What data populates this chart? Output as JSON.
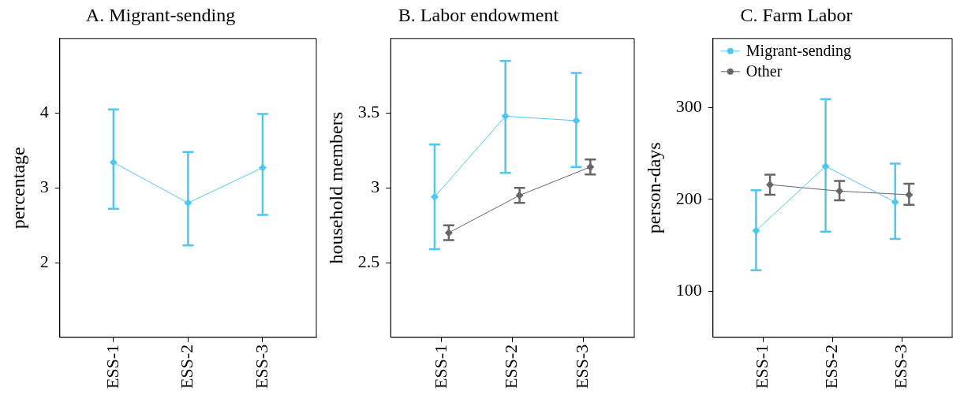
{
  "chart_data": [
    {
      "type": "line",
      "title": "A. Migrant-sending",
      "ylabel": "percentage",
      "categories": [
        "ESS-1",
        "ESS-2",
        "ESS-3"
      ],
      "ylim": [
        1,
        5
      ],
      "yticks": [
        2,
        3,
        4
      ],
      "marker": "diamond",
      "grid": false,
      "series": [
        {
          "color": "#4fc8f0",
          "values": [
            3.34,
            2.8,
            3.27
          ],
          "errors": [
            [
              2.72,
              4.05
            ],
            [
              2.23,
              3.48
            ],
            [
              2.64,
              3.99
            ]
          ]
        }
      ]
    },
    {
      "type": "line",
      "title": "B. Labor endowment",
      "ylabel": "household members",
      "categories": [
        "ESS-1",
        "ESS-2",
        "ESS-3"
      ],
      "ylim": [
        2,
        4
      ],
      "yticks": [
        2.5,
        3,
        3.5
      ],
      "marker": "diamond",
      "grid": false,
      "series": [
        {
          "color": "#4fc8f0",
          "values": [
            2.94,
            3.48,
            3.45
          ],
          "errors": [
            [
              2.59,
              3.29
            ],
            [
              3.1,
              3.85
            ],
            [
              3.14,
              3.77
            ]
          ]
        },
        {
          "color": "#666666",
          "values": [
            2.7,
            2.95,
            3.14
          ],
          "errors": [
            [
              2.65,
              2.75
            ],
            [
              2.9,
              3.0
            ],
            [
              3.09,
              3.19
            ]
          ]
        }
      ]
    },
    {
      "type": "line",
      "title": "C. Farm Labor",
      "ylabel": "person-days",
      "categories": [
        "ESS-1",
        "ESS-2",
        "ESS-3"
      ],
      "ylim": [
        50,
        375
      ],
      "yticks": [
        100,
        200,
        300
      ],
      "marker": "diamond",
      "grid": false,
      "legend": "top left",
      "series": [
        {
          "name": "Migrant-sending",
          "color": "#4fc8f0",
          "values": [
            166,
            236,
            197
          ],
          "errors": [
            [
              123,
              210
            ],
            [
              165,
              309
            ],
            [
              157,
              239
            ]
          ]
        },
        {
          "name": "Other",
          "color": "#666666",
          "values": [
            216,
            209,
            205
          ],
          "errors": [
            [
              205,
              227
            ],
            [
              199,
              220
            ],
            [
              194,
              217
            ]
          ]
        }
      ]
    }
  ]
}
